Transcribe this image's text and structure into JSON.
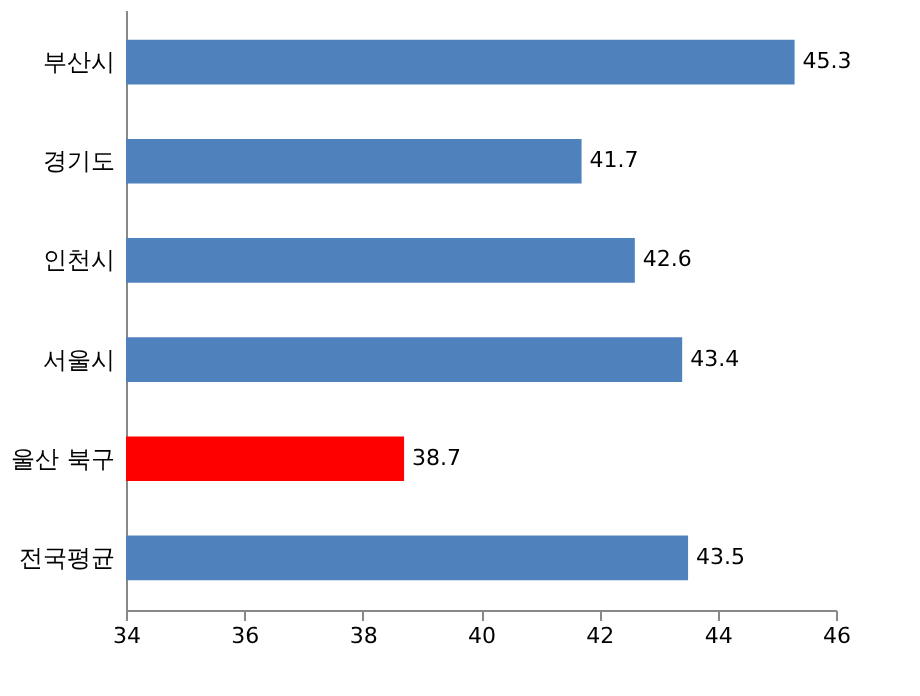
{
  "chart_data": {
    "type": "bar",
    "orientation": "horizontal",
    "categories": [
      "부산시",
      "경기도",
      "인천시",
      "서울시",
      "울산 북구",
      "전국평균"
    ],
    "values": [
      45.3,
      41.7,
      42.6,
      43.4,
      38.7,
      43.5
    ],
    "colors": [
      "#4f81bd",
      "#4f81bd",
      "#4f81bd",
      "#4f81bd",
      "#ff0000",
      "#4f81bd"
    ],
    "xlim": [
      34,
      46
    ],
    "xticks": [
      34,
      36,
      38,
      40,
      42,
      44,
      46
    ],
    "data_labels": true,
    "grid": false
  }
}
